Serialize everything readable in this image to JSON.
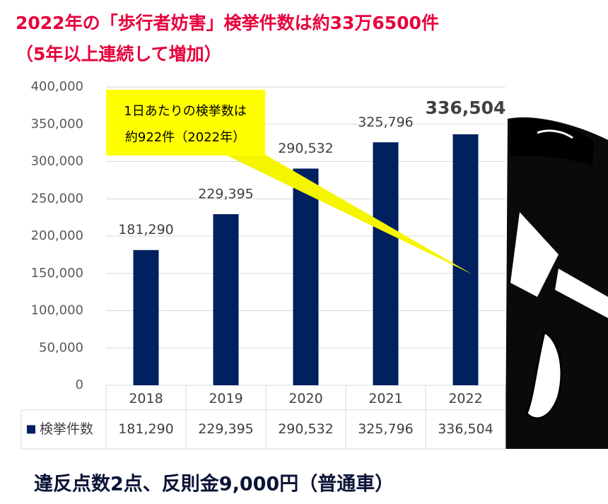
{
  "chart_data": {
    "type": "bar",
    "title": "2022年の「歩行者妨害」検挙件数は約33万6500件",
    "subtitle": "（5年以上連続して増加）",
    "categories": [
      "2018",
      "2019",
      "2020",
      "2021",
      "2022"
    ],
    "series": [
      {
        "name": "検挙件数",
        "color": "#002060",
        "values": [
          181290,
          229395,
          290532,
          325796,
          336504
        ],
        "value_labels": [
          "181,290",
          "229,395",
          "290,532",
          "325,796",
          "336,504"
        ]
      }
    ],
    "ylim": [
      0,
      400000
    ],
    "yticks": [
      0,
      {
        "value": 50000,
        "label": "50,000"
      },
      {
        "value": 100000,
        "label": "100,000"
      },
      {
        "value": 150000,
        "label": "150,000"
      },
      {
        "value": 200000,
        "label": "200,000"
      },
      {
        "value": 250000,
        "label": "250,000"
      },
      {
        "value": 300000,
        "label": "300,000"
      },
      {
        "value": 350000,
        "label": "350,000"
      },
      {
        "value": 400000,
        "label": "400,000"
      }
    ],
    "grid": true,
    "annotations": [
      "1日あたりの検挙数は",
      "約922件（2022年）"
    ],
    "footer": "違反点数2点、反則金9,000円（普通車）"
  }
}
